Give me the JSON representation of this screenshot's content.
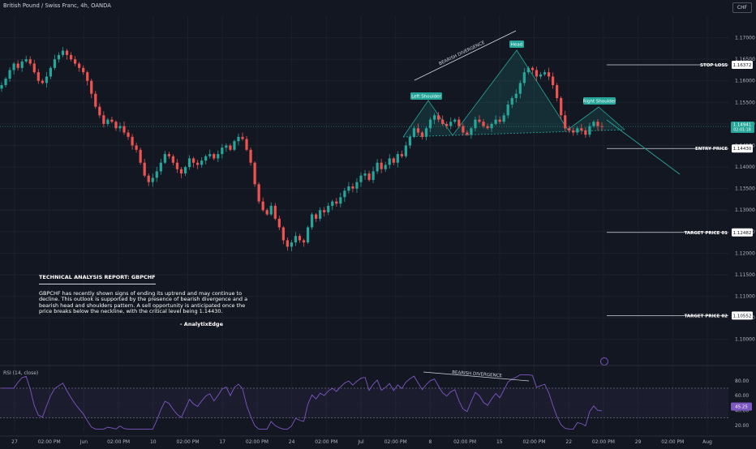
{
  "header": {
    "symbol_title": "British Pound / Swiss Franc, 4h, OANDA",
    "currency": "CHF"
  },
  "price_axis": {
    "ticks": [
      "1.17000",
      "1.16500",
      "1.16000",
      "1.15500",
      "1.15000",
      "1.14500",
      "1.14000",
      "1.13500",
      "1.13000",
      "1.12500",
      "1.12000",
      "1.11500",
      "1.11000",
      "1.10500",
      "1.10000"
    ],
    "current_price": "1.14941",
    "countdown": "02:01:18"
  },
  "levels": [
    {
      "label": "STOP LOSS",
      "value": "1.16372",
      "price": 1.16372
    },
    {
      "label": "ENTRY PRICE",
      "value": "1.14430",
      "price": 1.1443
    },
    {
      "label": "TARGET PRICE 01",
      "value": "1.12482",
      "price": 1.12482
    },
    {
      "label": "TARGET PRICE 02",
      "value": "1.10552",
      "price": 1.10552
    }
  ],
  "annotations": {
    "divergence_top": "BEARISH DIVERGENCE",
    "head": "Head",
    "left_shoulder": "Left Shoulder",
    "right_shoulder": "Right Shoulder",
    "divergence_rsi": "BEARISH DIVERGENCE"
  },
  "report": {
    "title": "TECHNICAL ANALYSIS REPORT: GBPCHF",
    "body": "GBPCHF has recently shown signs of ending its uptrend and may continue to decline. This outlook is supported by the presence of bearish divergence and a bearish head and shoulders pattern. A sell opportunity is anticipated once the price breaks below the neckline, with the critical level being 1.14430.",
    "author": "- AnalytixEdge"
  },
  "rsi": {
    "label": "RSI (14, close)",
    "value": "45.25",
    "ticks": [
      "80.00",
      "60.00",
      "40.00",
      "20.00"
    ]
  },
  "time_axis": [
    "27",
    "02:00 PM",
    "Jun",
    "02:00 PM",
    "10",
    "02:00 PM",
    "17",
    "02:00 PM",
    "24",
    "02:00 PM",
    "Jul",
    "02:00 PM",
    "8",
    "02:00 PM",
    "15",
    "02:00 PM",
    "22",
    "02:00 PM",
    "29",
    "02:00 PM",
    "Aug"
  ],
  "colors": {
    "bg": "#131722",
    "up": "#26a69a",
    "down": "#ef5350",
    "rsi_line": "#7e57c2",
    "accent": "#2962ff"
  },
  "chart_data": {
    "type": "candlestick",
    "timeframe": "4h",
    "ylim": [
      1.096,
      1.175
    ],
    "close_path": [
      1.159,
      1.1605,
      1.1625,
      1.164,
      1.163,
      1.1645,
      1.165,
      1.164,
      1.162,
      1.16,
      1.1595,
      1.161,
      1.163,
      1.165,
      1.166,
      1.167,
      1.166,
      1.165,
      1.164,
      1.163,
      1.162,
      1.16,
      1.157,
      1.154,
      1.152,
      1.15,
      1.151,
      1.1505,
      1.149,
      1.1495,
      1.148,
      1.147,
      1.145,
      1.144,
      1.141,
      1.138,
      1.1365,
      1.1375,
      1.139,
      1.141,
      1.143,
      1.1425,
      1.141,
      1.1395,
      1.1385,
      1.14,
      1.142,
      1.141,
      1.1405,
      1.1415,
      1.1425,
      1.143,
      1.142,
      1.143,
      1.1445,
      1.145,
      1.144,
      1.146,
      1.147,
      1.1465,
      1.144,
      1.141,
      1.136,
      1.132,
      1.13,
      1.129,
      1.131,
      1.128,
      1.126,
      1.123,
      1.1215,
      1.1225,
      1.124,
      1.123,
      1.1225,
      1.126,
      1.129,
      1.128,
      1.13,
      1.1295,
      1.131,
      1.132,
      1.1315,
      1.133,
      1.1345,
      1.1355,
      1.135,
      1.1365,
      1.138,
      1.1385,
      1.137,
      1.139,
      1.141,
      1.1395,
      1.1405,
      1.142,
      1.141,
      1.143,
      1.1425,
      1.145,
      1.147,
      1.149,
      1.148,
      1.147,
      1.149,
      1.151,
      1.152,
      1.151,
      1.15,
      1.1495,
      1.1505,
      1.151,
      1.1495,
      1.148,
      1.1475,
      1.149,
      1.151,
      1.1505,
      1.1495,
      1.149,
      1.15,
      1.151,
      1.1505,
      1.152,
      1.1545,
      1.156,
      1.157,
      1.1595,
      1.162,
      1.163,
      1.1625,
      1.161,
      1.1615,
      1.162,
      1.161,
      1.159,
      1.156,
      1.152,
      1.149,
      1.1485,
      1.148,
      1.149,
      1.1485,
      1.1475,
      1.1495,
      1.1505,
      1.1495,
      1.1494
    ],
    "neckline": [
      [
        0.536,
        1.1447
      ],
      [
        0.802,
        1.1453
      ]
    ],
    "projection": {
      "from": 1.1453,
      "to": 1.137
    },
    "rsi_range": [
      10,
      95
    ],
    "rsi_levels": [
      70,
      30
    ]
  }
}
